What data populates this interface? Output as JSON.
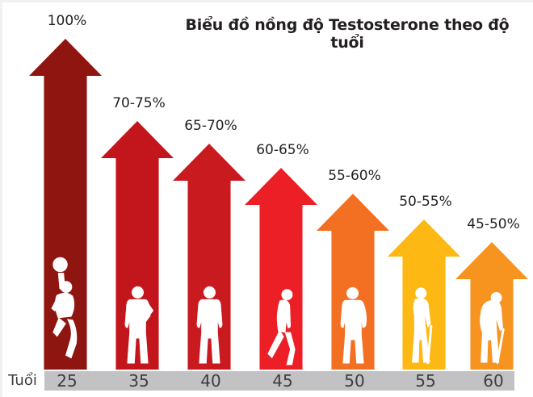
{
  "title": "Biểu đồ nồng độ Testosterone theo độ tuổi",
  "axis_label": "Tuổi",
  "arrows": [
    {
      "age": "25",
      "label": "100%",
      "color": "#8f1511",
      "icon": "jumping-basketball-man-icon"
    },
    {
      "age": "35",
      "label": "70-75%",
      "color": "#c3161c",
      "icon": "standing-man-hand-on-hip-icon"
    },
    {
      "age": "40",
      "label": "65-70%",
      "color": "#c91a20",
      "icon": "standing-man-icon"
    },
    {
      "age": "45",
      "label": "60-65%",
      "color": "#ec1f26",
      "icon": "walking-stooped-man-icon"
    },
    {
      "age": "50",
      "label": "55-60%",
      "color": "#f36f21",
      "icon": "elderly-standing-man-icon"
    },
    {
      "age": "55",
      "label": "50-55%",
      "color": "#fdb813",
      "icon": "elderly-man-with-cane-icon"
    },
    {
      "age": "60",
      "label": "45-50%",
      "color": "#f79420",
      "icon": "hunched-man-with-cane-icon"
    }
  ],
  "colors": {
    "axis_bar": "#c2c2c4",
    "text": "#231f20",
    "axis_text": "#3d3d3f",
    "background": "#ffffff",
    "silhouette": "#ffffff"
  },
  "chart_data": {
    "type": "bar",
    "title": "Biểu đồ nồng độ Testosterone theo độ tuổi",
    "xlabel": "Tuổi",
    "ylabel": "",
    "categories": [
      "25",
      "35",
      "40",
      "45",
      "50",
      "55",
      "60"
    ],
    "values": [
      100,
      72.5,
      67.5,
      62.5,
      57.5,
      52.5,
      47.5
    ],
    "value_labels": [
      "100%",
      "70-75%",
      "65-70%",
      "60-65%",
      "55-60%",
      "50-55%",
      "45-50%"
    ],
    "bar_colors": [
      "#8f1511",
      "#c3161c",
      "#c91a20",
      "#ec1f26",
      "#f36f21",
      "#fdb813",
      "#f79420"
    ],
    "ylim": [
      0,
      100
    ],
    "grid": false,
    "legend": null,
    "notes": "Arrow-shaped bars pointing up, each containing a white human silhouette that ages from left to right"
  }
}
